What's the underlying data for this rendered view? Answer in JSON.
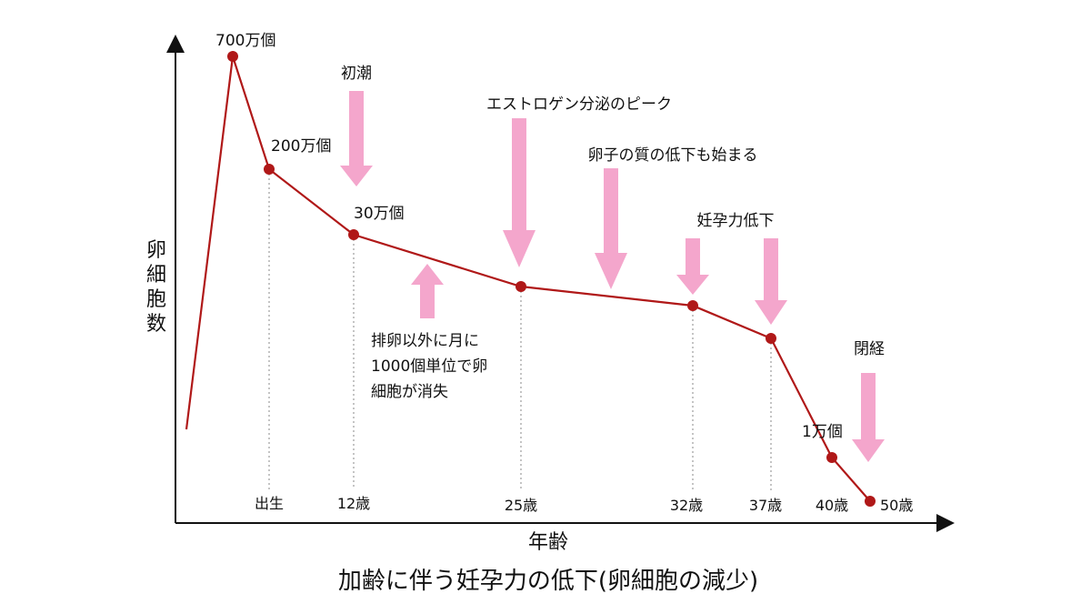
{
  "chart_data": {
    "type": "line",
    "title": "加齢に伴う妊孕力の低下(卵細胞の減少)",
    "xlabel": "年齢",
    "ylabel": "卵細胞数",
    "line_color": "#b01818",
    "arrow_color": "#f4a6cc",
    "points": [
      {
        "x": 0,
        "label": "700万個",
        "tick": ""
      },
      {
        "x": 1,
        "label": "200万個",
        "tick": "出生"
      },
      {
        "x": 2,
        "label": "30万個",
        "tick": "12歳"
      },
      {
        "x": 3,
        "label": "",
        "tick": "25歳"
      },
      {
        "x": 4,
        "label": "",
        "tick": "32歳"
      },
      {
        "x": 5,
        "label": "",
        "tick": "37歳"
      },
      {
        "x": 6,
        "label": "1万個",
        "tick": "40歳"
      },
      {
        "x": 7,
        "label": "",
        "tick": "50歳"
      }
    ],
    "annotations": [
      {
        "text": "初潮",
        "direction": "down"
      },
      {
        "text": "排卵以外に月に",
        "text2": "1000個単位で卵",
        "text3": "細胞が消失",
        "direction": "up"
      },
      {
        "text": "エストロゲン分泌のピーク",
        "direction": "down"
      },
      {
        "text": "卵子の質の低下も始まる",
        "direction": "down"
      },
      {
        "text": "妊孕力低下",
        "direction": "down"
      },
      {
        "text": "閉経",
        "direction": "down"
      }
    ]
  }
}
